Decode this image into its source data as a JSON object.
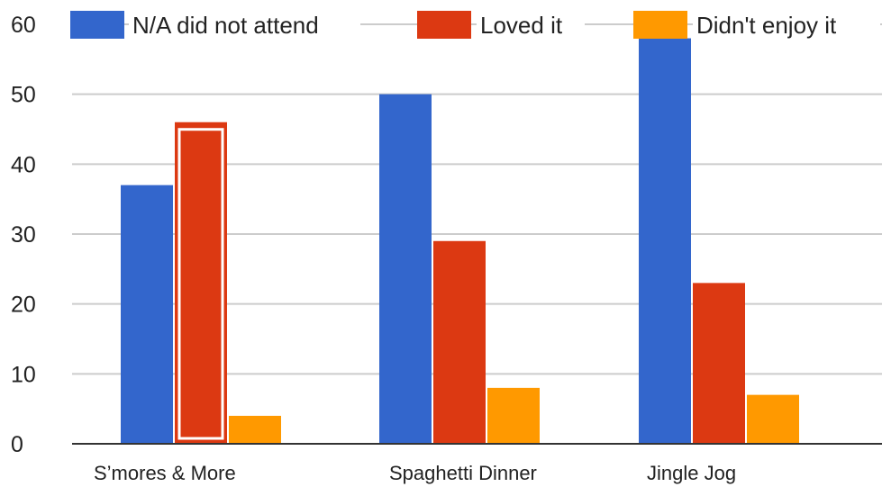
{
  "chart_data": {
    "type": "bar",
    "categories": [
      "S’mores & More",
      "Spaghetti Dinner",
      "Jingle Jog"
    ],
    "series": [
      {
        "name": "N/A did not attend",
        "color": "#3366cc",
        "values": [
          37,
          50,
          58
        ]
      },
      {
        "name": "Loved it",
        "color": "#dc3912",
        "values": [
          46,
          29,
          23
        ]
      },
      {
        "name": "Didn't enjoy it",
        "color": "#ff9900",
        "values": [
          4,
          8,
          7
        ]
      }
    ],
    "yticks": [
      0,
      10,
      20,
      30,
      40,
      50,
      60
    ],
    "ylim": [
      0,
      60
    ],
    "grid": true,
    "legend_position": "top",
    "highlighted": {
      "series": 1,
      "category": 0
    },
    "title": "",
    "xlabel": "",
    "ylabel": ""
  }
}
